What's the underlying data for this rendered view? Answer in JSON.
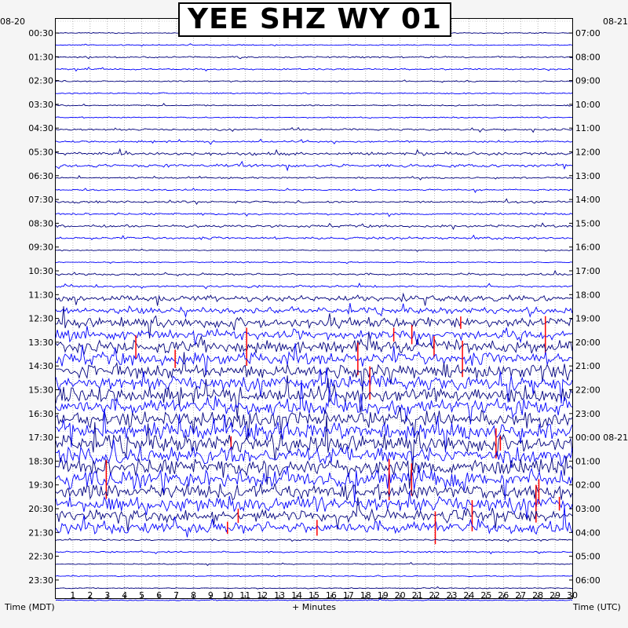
{
  "title": "YEE SHZ WY 01",
  "date_left": "08-20",
  "date_right": "08-21",
  "chart_data": {
    "type": "line",
    "title": "YEE SHZ WY 01",
    "xlabel": "+ Minutes",
    "ylabel_left": "Time (MDT)",
    "ylabel_right": "Time (UTC)",
    "x_ticks": [
      "1",
      "2",
      "3",
      "4",
      "5",
      "6",
      "7",
      "8",
      "9",
      "10",
      "11",
      "12",
      "13",
      "14",
      "15",
      "16",
      "17",
      "18",
      "19",
      "20",
      "21",
      "22",
      "23",
      "24",
      "25",
      "26",
      "27",
      "28",
      "29",
      "30"
    ],
    "xlim": [
      0,
      30
    ],
    "left_ticks": [
      "00:30",
      "01:30",
      "02:30",
      "03:30",
      "04:30",
      "05:30",
      "06:30",
      "07:30",
      "08:30",
      "09:30",
      "10:30",
      "11:30",
      "12:30",
      "13:30",
      "14:30",
      "15:30",
      "16:30",
      "17:30",
      "18:30",
      "19:30",
      "20:30",
      "21:30",
      "22:30",
      "23:30"
    ],
    "right_ticks": [
      "07:00",
      "08:00",
      "09:00",
      "10:00",
      "11:00",
      "12:00",
      "13:00",
      "14:00",
      "15:00",
      "16:00",
      "17:00",
      "18:00",
      "19:00",
      "20:00",
      "21:00",
      "22:00",
      "23:00",
      "00:00 08-21",
      "01:00",
      "02:00",
      "03:00",
      "04:00",
      "05:00",
      "06:00"
    ],
    "traces_per_hour": 2,
    "trace_minutes": 30,
    "grid": true,
    "colors": [
      "#00007f",
      "#0000ff",
      "#ff0000"
    ],
    "activity_by_hour": [
      0.1,
      0.15,
      0.12,
      0.12,
      0.18,
      0.3,
      0.15,
      0.2,
      0.25,
      0.1,
      0.2,
      0.6,
      1.0,
      1.3,
      1.4,
      1.5,
      1.6,
      1.7,
      1.7,
      1.5,
      1.2,
      0.15,
      0.1,
      0.1
    ]
  }
}
